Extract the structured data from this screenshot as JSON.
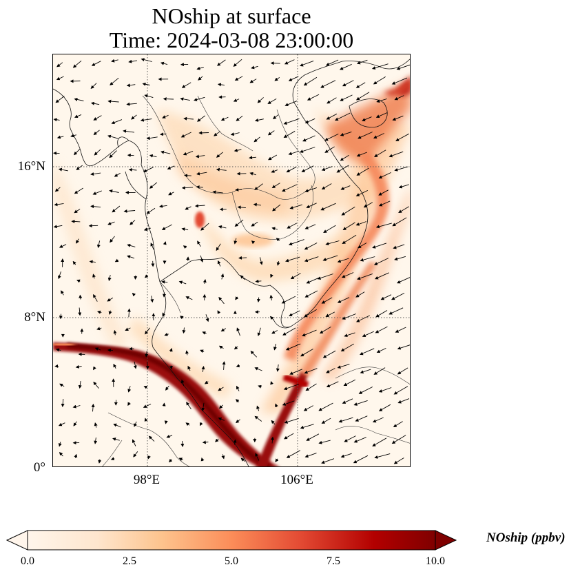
{
  "title": {
    "line1": "NOship at surface",
    "line2": "Time: 2024-03-08 23:00:00"
  },
  "map": {
    "lat_ticks": [
      "16°N",
      "8°N",
      "0°"
    ],
    "lon_ticks": [
      "98°E",
      "106°E"
    ],
    "extent": {
      "lon_min": 93,
      "lon_max": 112,
      "lat_min": 0,
      "lat_max": 22
    }
  },
  "colorbar": {
    "label": "NOship (ppbv)",
    "ticks": [
      "0.0",
      "2.5",
      "5.0",
      "7.5",
      "10.0"
    ],
    "min": 0,
    "max": 10,
    "colors": [
      "#fff5eb",
      "#fdd9b4",
      "#fdae6b",
      "#f87e4b",
      "#e34a33",
      "#b30000",
      "#7f0000"
    ]
  }
}
